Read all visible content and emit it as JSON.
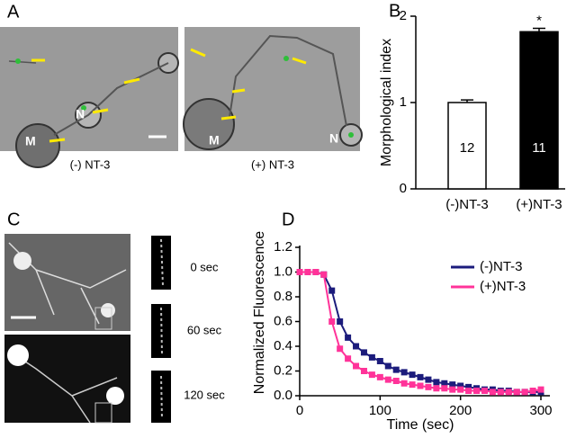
{
  "panel_labels": [
    "A",
    "B",
    "C",
    "D"
  ],
  "panel_a": {
    "captions": [
      "(-) NT-3",
      "(+) NT-3"
    ],
    "cell_labels": [
      "M",
      "N",
      "M",
      "N"
    ]
  },
  "panel_c": {
    "time_labels": [
      "0 sec",
      "60 sec",
      "120 sec"
    ]
  },
  "chart_data": [
    {
      "type": "bar",
      "ylabel": "Morphological index",
      "categories": [
        "(-)NT-3",
        "(+)NT-3"
      ],
      "values": [
        1.0,
        1.82
      ],
      "errors": [
        0.03,
        0.04
      ],
      "colors": [
        "#ffffff",
        "#000000"
      ],
      "sample_sizes": [
        12,
        11
      ],
      "annotation": "*",
      "ylim": [
        0,
        2
      ],
      "yticks": [
        0,
        1,
        2
      ]
    },
    {
      "type": "line",
      "xlabel": "Time (sec)",
      "ylabel": "Normalized Fluorescence",
      "x": [
        0,
        10,
        20,
        30,
        40,
        50,
        60,
        70,
        80,
        90,
        100,
        110,
        120,
        130,
        140,
        150,
        160,
        170,
        180,
        190,
        200,
        210,
        220,
        230,
        240,
        250,
        260,
        270,
        280,
        290,
        300
      ],
      "series": [
        {
          "name": "(-)NT-3",
          "color": "#1c1c7c",
          "values": [
            1.0,
            1.0,
            1.0,
            0.98,
            0.85,
            0.6,
            0.47,
            0.4,
            0.35,
            0.31,
            0.28,
            0.24,
            0.21,
            0.19,
            0.17,
            0.15,
            0.13,
            0.11,
            0.1,
            0.09,
            0.08,
            0.07,
            0.06,
            0.05,
            0.05,
            0.04,
            0.04,
            0.03,
            0.03,
            0.03,
            0.03
          ]
        },
        {
          "name": "(+)NT-3",
          "color": "#ff3399",
          "values": [
            1.0,
            1.0,
            1.0,
            0.98,
            0.6,
            0.38,
            0.3,
            0.24,
            0.2,
            0.17,
            0.15,
            0.13,
            0.12,
            0.1,
            0.09,
            0.08,
            0.07,
            0.06,
            0.06,
            0.05,
            0.05,
            0.04,
            0.04,
            0.04,
            0.03,
            0.03,
            0.03,
            0.03,
            0.03,
            0.04,
            0.05
          ]
        }
      ],
      "xlim": [
        0,
        300
      ],
      "xticks": [
        0,
        100,
        200,
        300
      ],
      "ylim": [
        0,
        1.2
      ],
      "yticks": [
        {
          "value": 0,
          "label": "0.0"
        },
        {
          "value": 0.2,
          "label": "0.2"
        },
        {
          "value": 0.4,
          "label": "0.4"
        },
        {
          "value": 0.6,
          "label": "0.6"
        },
        {
          "value": 0.8,
          "label": "0.8"
        },
        {
          "value": 1,
          "label": "1.0"
        },
        {
          "value": 1.2,
          "label": "1.2"
        }
      ],
      "legend": "upper right"
    }
  ]
}
